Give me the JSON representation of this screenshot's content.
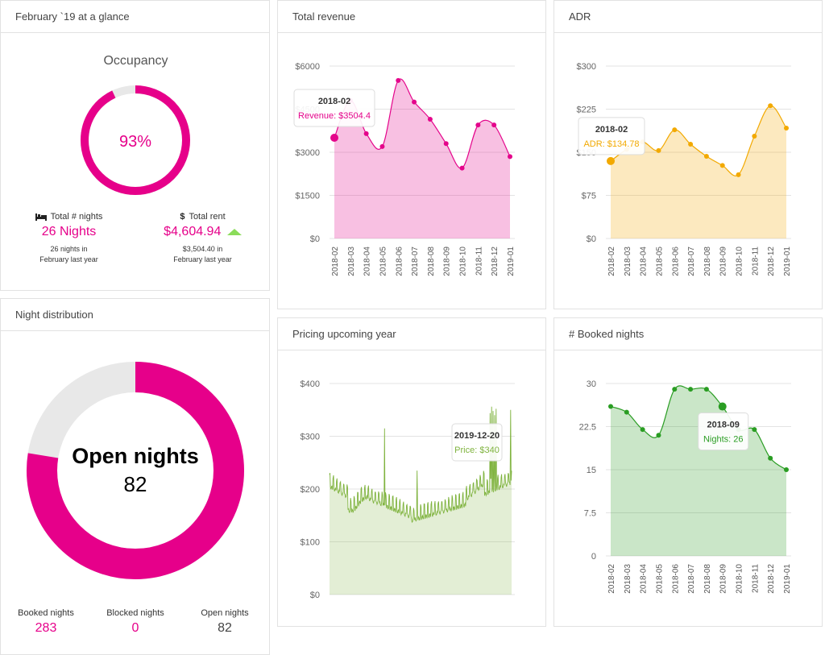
{
  "colors": {
    "accent": "#e6008a",
    "revenue": "#e4058b",
    "adr": "#f2a900",
    "pricing": "#7fb33e",
    "booked": "#2a9d23",
    "grey": "#e8e8e8"
  },
  "glance": {
    "title": "February `19 at a glance",
    "occupancy_label": "Occupancy",
    "occupancy_value": "93%",
    "occupancy_fraction": 0.93,
    "nights": {
      "icon": "bed-icon",
      "label": "Total # nights",
      "value": "26 Nights",
      "sub": "26 nights in\nFebruary last year"
    },
    "rent": {
      "icon": "dollar-icon",
      "label": "Total rent",
      "value": "$4,604.94",
      "sub": "$3,504.40 in\nFebruary last year",
      "trend_icon": "trend-up-icon"
    }
  },
  "night_distribution": {
    "title": "Night distribution",
    "center_label": "Open nights",
    "center_value": "82",
    "stats": [
      {
        "label": "Booked nights",
        "value": "283",
        "color": "#e6008a"
      },
      {
        "label": "Blocked nights",
        "value": "0",
        "color": "#e6008a"
      },
      {
        "label": "Open nights",
        "value": "82",
        "color": "#444444"
      }
    ]
  },
  "chart_data": [
    {
      "id": "revenue",
      "title": "Total revenue",
      "type": "area",
      "categories": [
        "2018-02",
        "2018-03",
        "2018-04",
        "2018-05",
        "2018-06",
        "2018-07",
        "2018-08",
        "2018-09",
        "2018-10",
        "2018-11",
        "2018-12",
        "2019-01"
      ],
      "values": [
        3504.4,
        4800,
        3650,
        3200,
        5500,
        4750,
        4150,
        3300,
        2450,
        3950,
        3950,
        2850
      ],
      "ylim": [
        0,
        6000
      ],
      "yticks": [
        "$0",
        "$1500",
        "$3000",
        "$4500",
        "$6000"
      ],
      "color": "#e4058b",
      "tooltip": {
        "index": 0,
        "title": "2018-02",
        "text": "Revenue: $3504.4"
      }
    },
    {
      "id": "adr",
      "title": "ADR",
      "type": "area",
      "categories": [
        "2018-02",
        "2018-03",
        "2018-04",
        "2018-05",
        "2018-06",
        "2018-07",
        "2018-08",
        "2018-09",
        "2018-10",
        "2018-11",
        "2018-12",
        "2019-01"
      ],
      "values": [
        134.78,
        155,
        168,
        153,
        189,
        164,
        143,
        127,
        111,
        178,
        231,
        192
      ],
      "ylim": [
        0,
        300
      ],
      "yticks": [
        "$0",
        "$75",
        "$150",
        "$225",
        "$300"
      ],
      "color": "#f2a900",
      "tooltip": {
        "index": 0,
        "title": "2018-02",
        "text": "ADR: $134.78"
      }
    },
    {
      "id": "pricing",
      "title": "Pricing upcoming year",
      "type": "area",
      "categories": [],
      "values": [],
      "ylim": [
        0,
        400
      ],
      "yticks": [
        "$0",
        "$100",
        "$200",
        "$300",
        "$400"
      ],
      "color": "#7fb33e",
      "tooltip": {
        "title": "2019-12-20",
        "text": "Price: $340"
      }
    },
    {
      "id": "booked",
      "title": "# Booked nights",
      "type": "area",
      "categories": [
        "2018-02",
        "2018-03",
        "2018-04",
        "2018-05",
        "2018-06",
        "2018-07",
        "2018-08",
        "2018-09",
        "2018-10",
        "2018-11",
        "2018-12",
        "2019-01"
      ],
      "values": [
        26,
        25,
        22,
        21,
        29,
        29,
        29,
        26,
        22,
        22,
        17,
        15
      ],
      "ylim": [
        0,
        30
      ],
      "yticks": [
        "0",
        "7.5",
        "15",
        "22.5",
        "30"
      ],
      "color": "#2a9d23",
      "tooltip": {
        "index": 7,
        "title": "2018-09",
        "text": "Nights: 26"
      }
    }
  ]
}
